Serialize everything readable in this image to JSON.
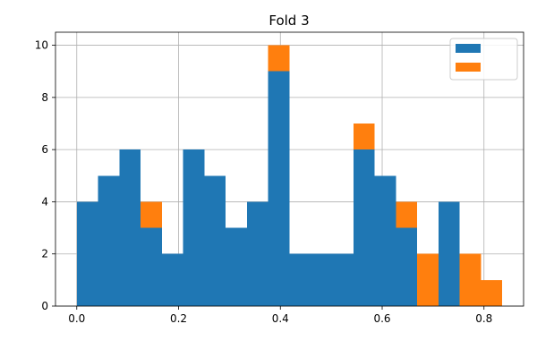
{
  "chart_data": {
    "type": "bar",
    "stacked": true,
    "title": "Fold 3",
    "xlabel": "",
    "ylabel": "",
    "bin_edges": [
      0.0,
      0.0418,
      0.0836,
      0.1254,
      0.1672,
      0.209,
      0.2508,
      0.2926,
      0.3344,
      0.3762,
      0.418,
      0.4598,
      0.5016,
      0.5434,
      0.5852,
      0.627,
      0.6688,
      0.7106,
      0.7524,
      0.7942,
      0.836
    ],
    "series": [
      {
        "name": "",
        "color": "#1f77b4",
        "values": [
          4,
          5,
          6,
          3,
          2,
          6,
          5,
          3,
          4,
          9,
          2,
          2,
          2,
          6,
          5,
          3,
          0,
          4,
          0,
          0
        ]
      },
      {
        "name": "",
        "color": "#ff7f0e",
        "values": [
          0,
          0,
          0,
          1,
          0,
          0,
          0,
          0,
          0,
          1,
          0,
          0,
          0,
          1,
          0,
          1,
          2,
          0,
          2,
          1
        ]
      }
    ],
    "xlim": [
      -0.0418,
      0.8778
    ],
    "ylim": [
      0,
      10.5
    ],
    "xticks": [
      0.0,
      0.2,
      0.4,
      0.6,
      0.8
    ],
    "xtick_labels": [
      "0.0",
      "0.2",
      "0.4",
      "0.6",
      "0.8"
    ],
    "yticks": [
      0,
      2,
      4,
      6,
      8,
      10
    ],
    "ytick_labels": [
      "0",
      "2",
      "4",
      "6",
      "8",
      "10"
    ],
    "grid": true,
    "legend_position": "top-right"
  }
}
